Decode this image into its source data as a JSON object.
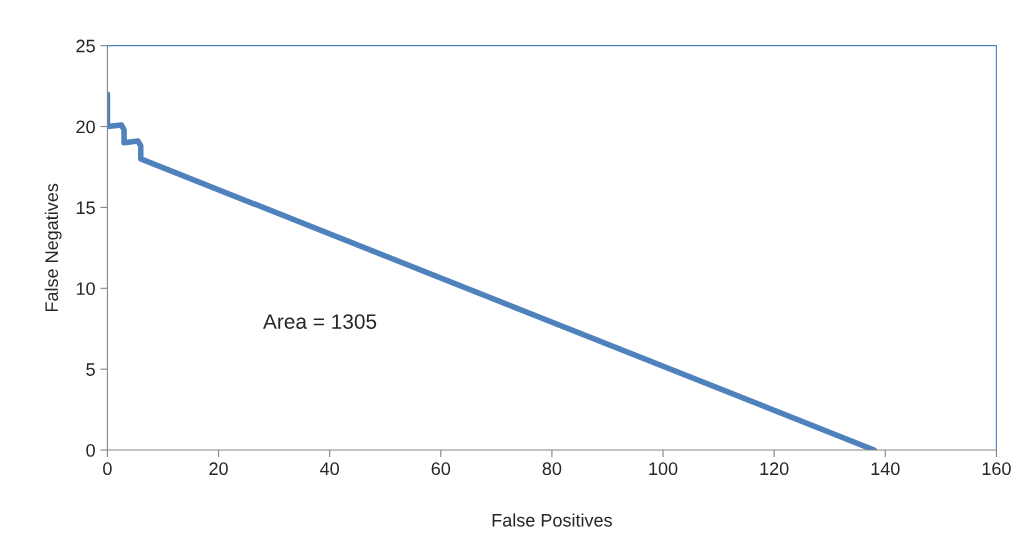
{
  "chart_data": {
    "type": "line",
    "xlabel": "False Positives",
    "ylabel": "False Negatives",
    "series": [
      {
        "color": "#4f81bd",
        "x": [
          0,
          0,
          0,
          2.5,
          3,
          3,
          5.5,
          6,
          6,
          138
        ],
        "values": [
          22,
          20,
          20,
          20.1,
          19.8,
          19,
          19.1,
          18.8,
          18,
          0
        ]
      }
    ],
    "xlim": [
      0,
      160
    ],
    "xticks": [
      0,
      20,
      40,
      60,
      80,
      100,
      120,
      140,
      160
    ],
    "ylim": [
      0,
      25
    ],
    "yticks": [
      0,
      5,
      10,
      15,
      20,
      25
    ],
    "annotations": [
      "Area = 1305"
    ],
    "grid": false,
    "legend": false
  }
}
